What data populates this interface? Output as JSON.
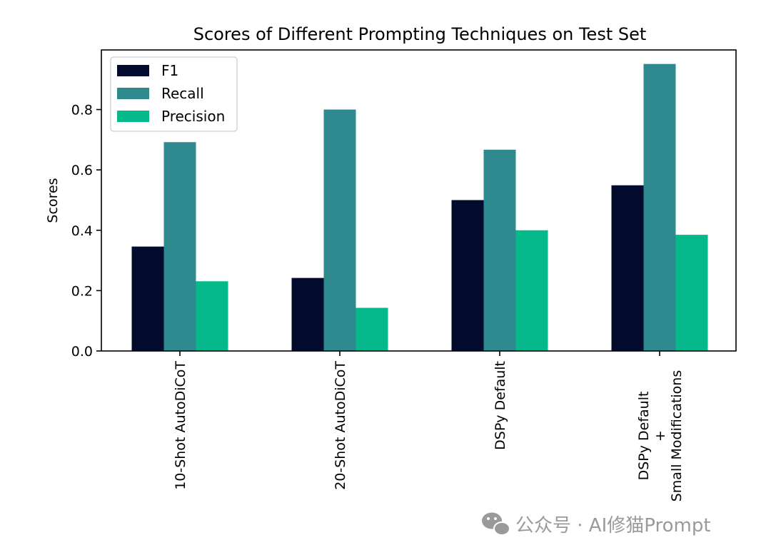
{
  "chart_data": {
    "type": "bar",
    "title": "Scores of Different Prompting Techniques on Test Set",
    "xlabel": "",
    "ylabel": "Scores",
    "ylim": [
      0,
      0.9975
    ],
    "yticks": [
      "0.0",
      "0.2",
      "0.4",
      "0.6",
      "0.8"
    ],
    "ytick_values": [
      0,
      0.2,
      0.4,
      0.6,
      0.8
    ],
    "categories": [
      "10-Shot AutoDiCoT",
      "20-Shot AutoDiCoT",
      "DSPy Default",
      "DSPy Default\n+\nSmall Modifications"
    ],
    "category_lines": [
      [
        "10-Shot AutoDiCoT"
      ],
      [
        "20-Shot AutoDiCoT"
      ],
      [
        "DSPy Default"
      ],
      [
        "DSPy Default",
        "+",
        "Small Modifications"
      ]
    ],
    "series": [
      {
        "name": "F1",
        "color": "#020b2e",
        "values": [
          0.346,
          0.242,
          0.5,
          0.549
        ]
      },
      {
        "name": "Recall",
        "color": "#2e8a8e",
        "values": [
          0.692,
          0.8,
          0.667,
          0.951
        ]
      },
      {
        "name": "Precision",
        "color": "#05b98a",
        "values": [
          0.231,
          0.143,
          0.4,
          0.385
        ]
      }
    ],
    "legend_position": "top-left",
    "grid": false
  },
  "watermark": {
    "text": "公众号 · AI修猫Prompt",
    "icon": "wechat-icon"
  }
}
